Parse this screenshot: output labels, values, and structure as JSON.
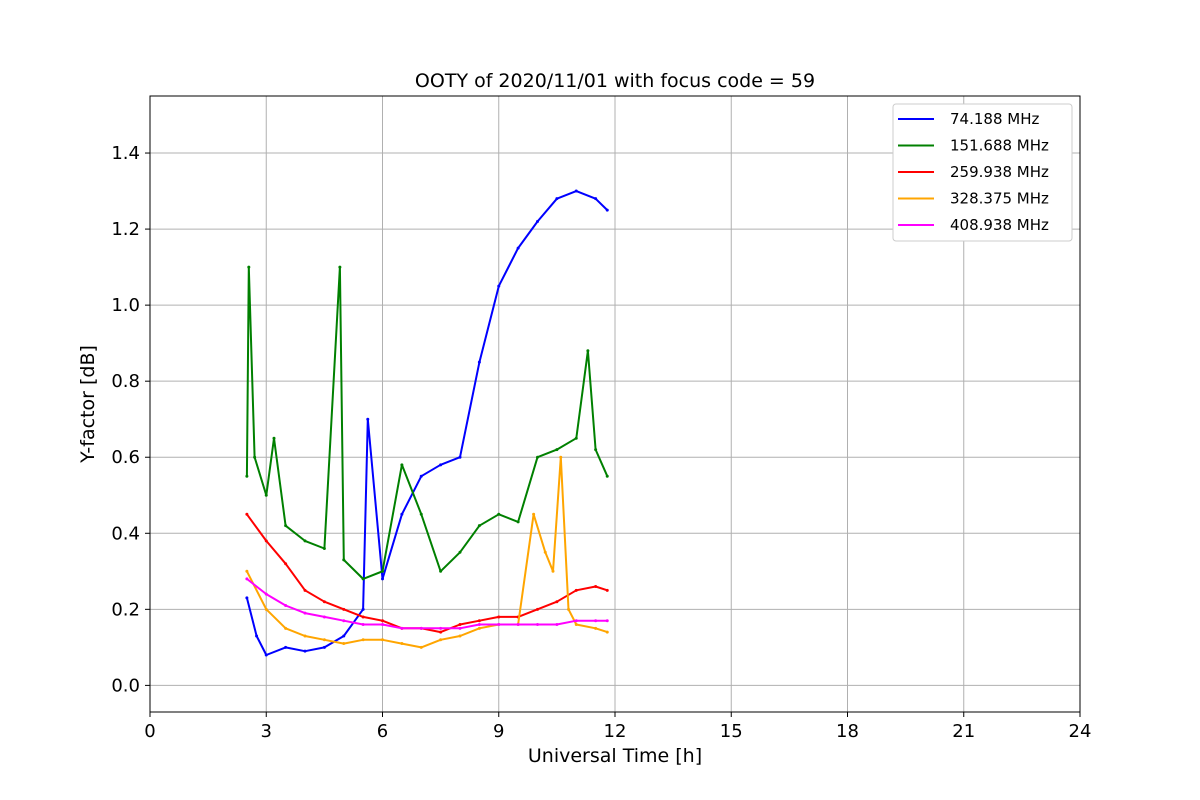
{
  "chart_data": {
    "type": "line",
    "title": "OOTY of 2020/11/01 with focus code = 59",
    "xlabel": "Universal Time [h]",
    "ylabel": "Y-factor [dB]",
    "xlim": [
      0,
      24
    ],
    "ylim": [
      -0.07,
      1.55
    ],
    "xticks": [
      0,
      3,
      6,
      9,
      12,
      15,
      18,
      21,
      24
    ],
    "xtick_labels": [
      "0",
      "3",
      "6",
      "9",
      "12",
      "15",
      "18",
      "21",
      "24"
    ],
    "yticks": [
      0.0,
      0.2,
      0.4,
      0.6,
      0.8,
      1.0,
      1.2,
      1.4
    ],
    "ytick_labels": [
      "0.0",
      "0.2",
      "0.4",
      "0.6",
      "0.8",
      "1.0",
      "1.2",
      "1.4"
    ],
    "grid": true,
    "legend_position": "top-right",
    "series": [
      {
        "name": " 74.188 MHz",
        "color": "#0000ff",
        "x": [
          2.5,
          2.75,
          3.0,
          3.5,
          4.0,
          4.5,
          5.0,
          5.5,
          5.62,
          6.0,
          6.5,
          7.0,
          7.5,
          8.0,
          8.5,
          9.0,
          9.5,
          10.0,
          10.5,
          11.0,
          11.5,
          11.8
        ],
        "y": [
          0.23,
          0.13,
          0.08,
          0.1,
          0.09,
          0.1,
          0.13,
          0.2,
          0.7,
          0.28,
          0.45,
          0.55,
          0.58,
          0.6,
          0.85,
          1.05,
          1.15,
          1.22,
          1.28,
          1.3,
          1.28,
          1.25
        ]
      },
      {
        "name": "151.688 MHz",
        "color": "#008000",
        "x": [
          2.5,
          2.55,
          2.7,
          3.0,
          3.2,
          3.5,
          4.0,
          4.5,
          4.9,
          5.0,
          5.5,
          6.0,
          6.5,
          7.0,
          7.5,
          8.0,
          8.5,
          9.0,
          9.5,
          10.0,
          10.5,
          11.0,
          11.3,
          11.5,
          11.8
        ],
        "y": [
          0.55,
          1.1,
          0.6,
          0.5,
          0.65,
          0.42,
          0.38,
          0.36,
          1.1,
          0.33,
          0.28,
          0.3,
          0.58,
          0.45,
          0.3,
          0.35,
          0.42,
          0.45,
          0.43,
          0.6,
          0.62,
          0.65,
          0.88,
          0.62,
          0.55
        ]
      },
      {
        "name": "259.938 MHz",
        "color": "#ff0000",
        "x": [
          2.5,
          3.0,
          3.5,
          4.0,
          4.5,
          5.0,
          5.5,
          6.0,
          6.5,
          7.0,
          7.5,
          8.0,
          8.5,
          9.0,
          9.5,
          10.0,
          10.5,
          11.0,
          11.5,
          11.8
        ],
        "y": [
          0.45,
          0.38,
          0.32,
          0.25,
          0.22,
          0.2,
          0.18,
          0.17,
          0.15,
          0.15,
          0.14,
          0.16,
          0.17,
          0.18,
          0.18,
          0.2,
          0.22,
          0.25,
          0.26,
          0.25
        ]
      },
      {
        "name": "328.375 MHz",
        "color": "#ffa500",
        "x": [
          2.5,
          3.0,
          3.5,
          4.0,
          4.5,
          5.0,
          5.5,
          6.0,
          6.5,
          7.0,
          7.5,
          8.0,
          8.5,
          9.0,
          9.5,
          9.9,
          10.2,
          10.4,
          10.6,
          10.8,
          11.0,
          11.5,
          11.8
        ],
        "y": [
          0.3,
          0.2,
          0.15,
          0.13,
          0.12,
          0.11,
          0.12,
          0.12,
          0.11,
          0.1,
          0.12,
          0.13,
          0.15,
          0.16,
          0.16,
          0.45,
          0.35,
          0.3,
          0.6,
          0.2,
          0.16,
          0.15,
          0.14
        ]
      },
      {
        "name": "408.938 MHz",
        "color": "#ff00ff",
        "x": [
          2.5,
          3.0,
          3.5,
          4.0,
          4.5,
          5.0,
          5.5,
          6.0,
          6.5,
          7.0,
          7.5,
          8.0,
          8.5,
          9.0,
          9.5,
          10.0,
          10.5,
          11.0,
          11.5,
          11.8
        ],
        "y": [
          0.28,
          0.24,
          0.21,
          0.19,
          0.18,
          0.17,
          0.16,
          0.16,
          0.15,
          0.15,
          0.15,
          0.15,
          0.16,
          0.16,
          0.16,
          0.16,
          0.16,
          0.17,
          0.17,
          0.17
        ]
      }
    ]
  }
}
